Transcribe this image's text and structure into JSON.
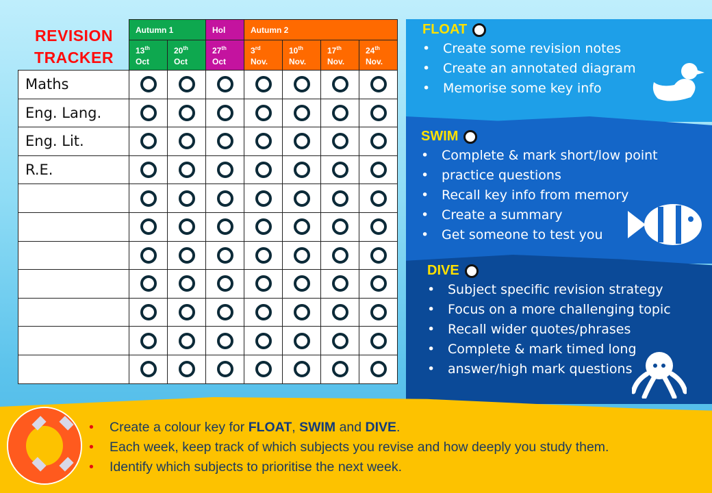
{
  "title": {
    "line1": "REVISION",
    "line2": "TRACKER"
  },
  "terms": [
    {
      "label": "Autumn 1",
      "color": "#0ea84f",
      "span": 2
    },
    {
      "label": "Hol",
      "color": "#c4139f",
      "span": 1
    },
    {
      "label": "Autumn 2",
      "color": "#ff6a00",
      "span": 4
    }
  ],
  "weeks": [
    {
      "day": "13",
      "suffix": "th",
      "month": "Oct",
      "term": 0
    },
    {
      "day": "20",
      "suffix": "th",
      "month": "Oct",
      "term": 0
    },
    {
      "day": "27",
      "suffix": "th",
      "month": "Oct",
      "term": 1
    },
    {
      "day": "3",
      "suffix": "rd",
      "month": "Nov.",
      "term": 2
    },
    {
      "day": "10",
      "suffix": "th",
      "month": "Nov.",
      "term": 2
    },
    {
      "day": "17",
      "suffix": "th",
      "month": "Nov.",
      "term": 2
    },
    {
      "day": "24",
      "suffix": "th",
      "month": "Nov.",
      "term": 2
    }
  ],
  "subjects": [
    "Maths",
    "Eng. Lang.",
    "Eng. Lit.",
    "R.E.",
    "",
    "",
    "",
    "",
    "",
    "",
    ""
  ],
  "float": {
    "title": "FLOAT",
    "items": [
      "Create some revision notes",
      "Create an annotated diagram",
      "Memorise some key info"
    ],
    "icon": "duck-icon"
  },
  "swim": {
    "title": "SWIM",
    "items": [
      "Complete & mark  short/low point",
      "practice questions",
      "Recall key info from memory",
      "Create a summary",
      "Get someone to test you"
    ],
    "icon": "fish-icon"
  },
  "dive": {
    "title": "DIVE",
    "items": [
      "Subject specific revision strategy",
      "Focus on a more  challenging topic",
      "Recall wider quotes/phrases",
      "Complete & mark timed long",
      "answer/high mark questions"
    ],
    "icon": "octopus-icon"
  },
  "instructions": {
    "i1_pre": "Create a colour key for ",
    "i1_float": "FLOAT",
    "i1_comma": ", ",
    "i1_swim": "SWIM",
    "i1_and": " and ",
    "i1_dive": "DIVE",
    "i1_end": ".",
    "i2": "Each week, keep track of which subjects you revise and how deeply you study them.",
    "i3": "Identify which subjects to prioritise the next week."
  },
  "colors": {
    "title": "#ff0d0d",
    "float": "#1e9fe8",
    "swim": "#1466c8",
    "dive": "#0b4a98",
    "accent": "#ffe100",
    "bottom": "#fdc200"
  }
}
